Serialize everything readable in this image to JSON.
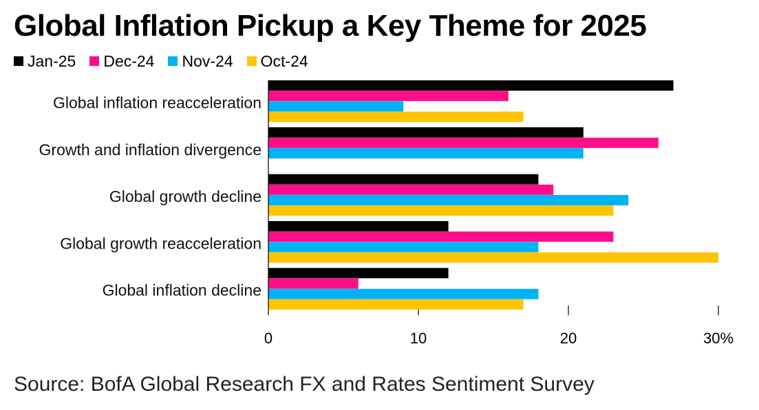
{
  "chart_data": {
    "type": "bar",
    "orientation": "horizontal",
    "title": "Global Inflation Pickup a Key Theme for 2025",
    "categories": [
      "Global inflation reacceleration",
      "Growth and inflation divergence",
      "Global growth decline",
      "Global growth reacceleration",
      "Global inflation decline"
    ],
    "series": [
      {
        "name": "Jan-25",
        "color": "#000000",
        "values": [
          27,
          21,
          18,
          12,
          12
        ]
      },
      {
        "name": "Dec-24",
        "color": "#ff0d8a",
        "values": [
          16,
          26,
          19,
          23,
          6
        ]
      },
      {
        "name": "Nov-24",
        "color": "#00b3f5",
        "values": [
          9,
          21,
          24,
          18,
          18
        ]
      },
      {
        "name": "Oct-24",
        "color": "#ffc400",
        "values": [
          17,
          null,
          23,
          30,
          17
        ]
      }
    ],
    "xlim": [
      0,
      30
    ],
    "ticks": [
      {
        "value": 0,
        "label": "0"
      },
      {
        "value": 10,
        "label": "10"
      },
      {
        "value": 20,
        "label": "20"
      },
      {
        "value": 30,
        "label": "30%"
      }
    ],
    "legend": "top-left",
    "grid": false
  },
  "source": "Source: BofA Global Research FX and Rates Sentiment Survey"
}
